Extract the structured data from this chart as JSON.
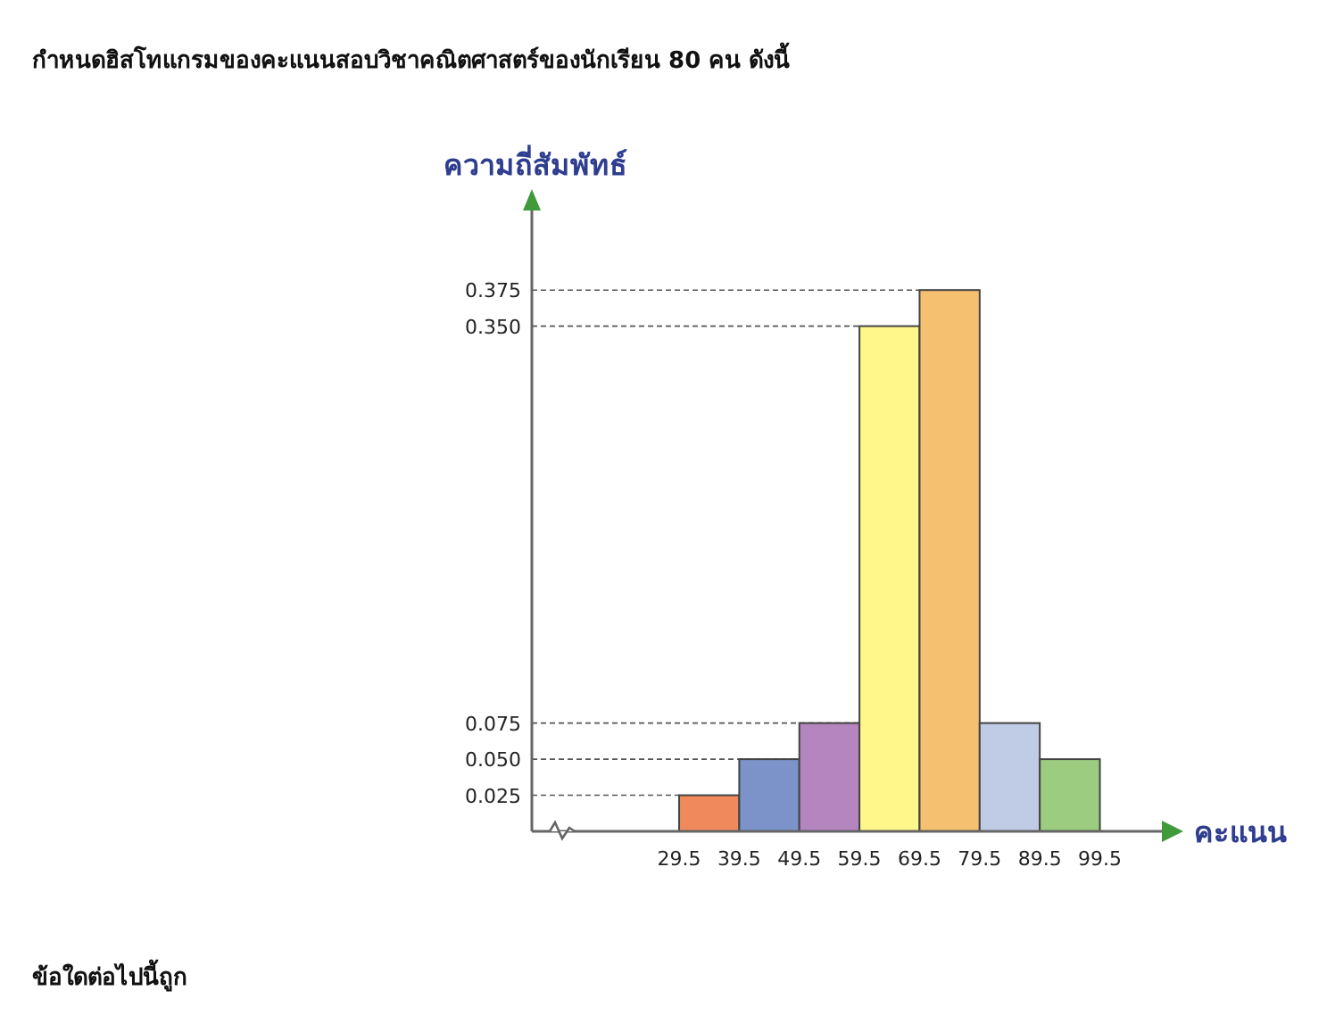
{
  "chart_data": {
    "type": "histogram",
    "title": "กำหนดฮิสโทแกรมของคะแนนสอบวิชาคณิตศาสตร์ของนักเรียน 80 คน ดังนี้",
    "xlabel": "คะแนน",
    "ylabel": "ความถี่สัมพัทธ์",
    "bins": [
      29.5,
      39.5,
      49.5,
      59.5,
      69.5,
      79.5,
      89.5,
      99.5
    ],
    "values": [
      0.025,
      0.05,
      0.075,
      0.35,
      0.375,
      0.075,
      0.05
    ],
    "colors": [
      "#f08a5d",
      "#7b93c8",
      "#b585bf",
      "#fff78a",
      "#f5c070",
      "#c0cce6",
      "#9ccc80"
    ],
    "xlim": [
      5,
      111
    ],
    "ylim": [
      0,
      0.44
    ],
    "xticks": [
      29.5,
      39.5,
      49.5,
      59.5,
      69.5,
      79.5,
      89.5,
      99.5
    ],
    "yticks": [
      {
        "value": 0.025,
        "label": "0.025"
      },
      {
        "value": 0.05,
        "label": "0.050"
      },
      {
        "value": 0.075,
        "label": "0.075"
      },
      {
        "value": 0.35,
        "label": "0.350"
      },
      {
        "value": 0.375,
        "label": "0.375"
      }
    ],
    "ref_lines": [
      {
        "axis": "y",
        "value": 0.025,
        "line_style": "dashed"
      },
      {
        "axis": "y",
        "value": 0.05,
        "line_style": "dashed"
      },
      {
        "axis": "y",
        "value": 0.075,
        "line_style": "dashed"
      },
      {
        "axis": "y",
        "value": 0.35,
        "line_style": "dashed"
      },
      {
        "axis": "y",
        "value": 0.375,
        "line_style": "dashed"
      }
    ],
    "annotations": [
      "ข้อใดต่อไปนี้ถูก"
    ]
  }
}
